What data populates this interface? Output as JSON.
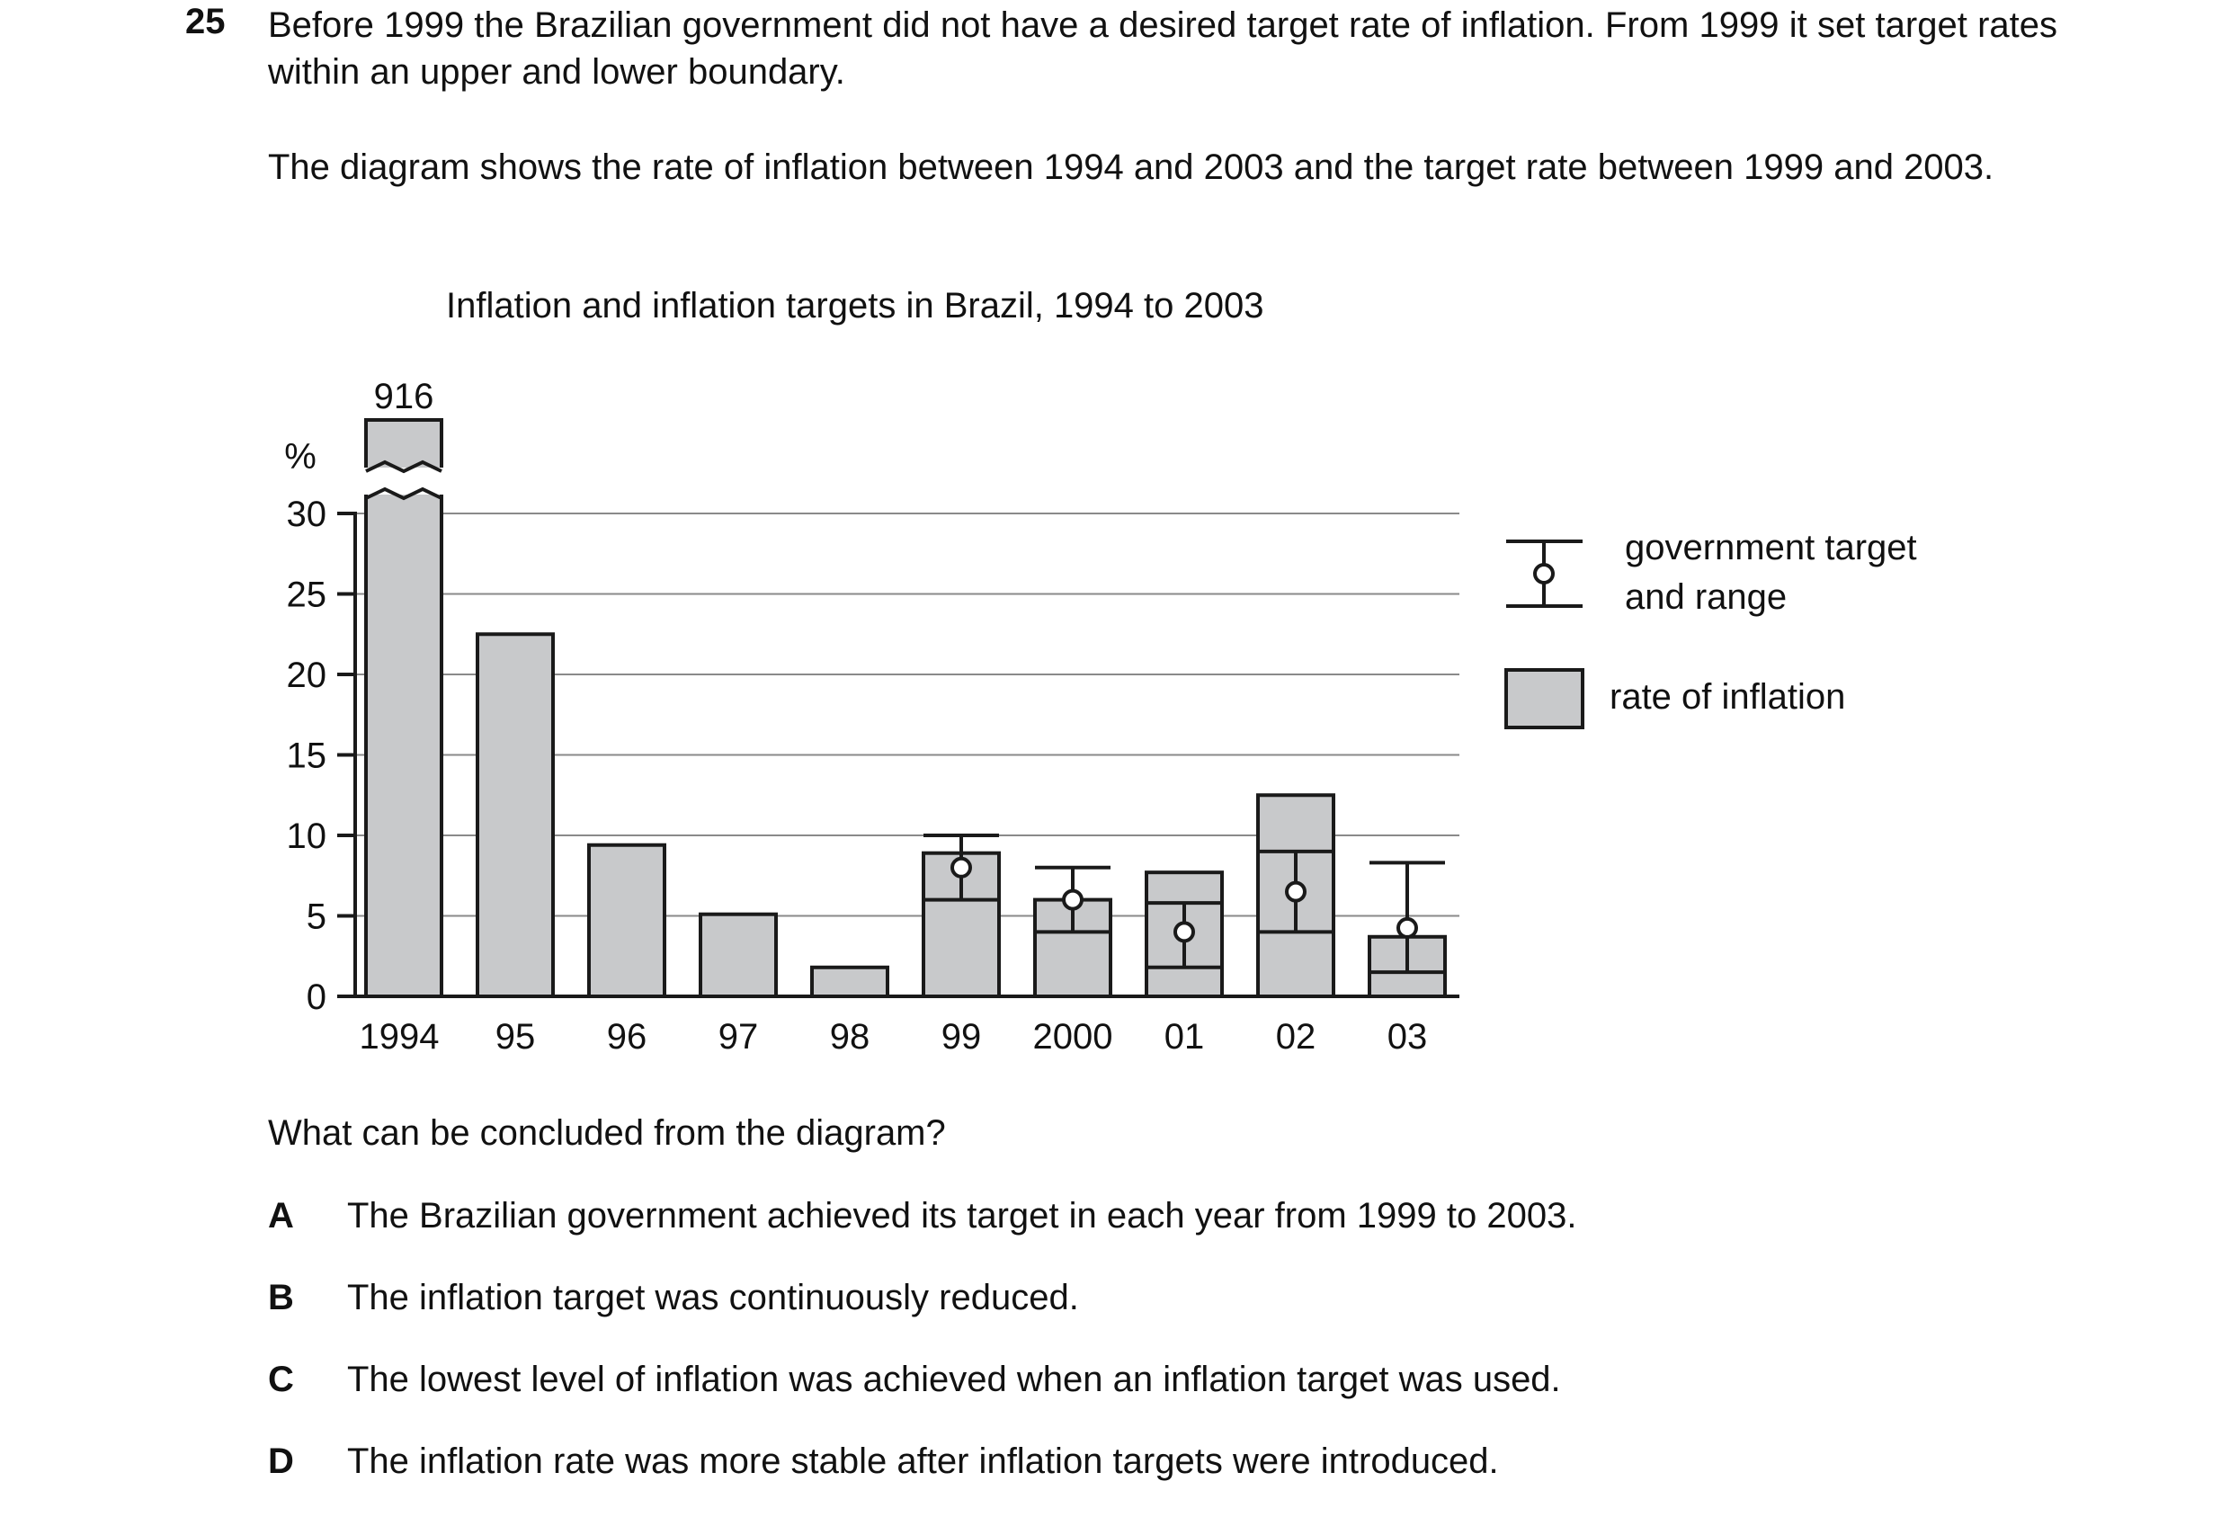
{
  "question_number": "25",
  "intro": [
    "Before 1999 the Brazilian government did not have a desired target rate of inflation. From 1999 it set target rates within an upper and lower boundary.",
    "The diagram shows the rate of inflation between 1994 and 2003 and the target rate between 1999 and 2003."
  ],
  "chart_data": {
    "type": "bar",
    "title": "Inflation and inflation targets in Brazil, 1994 to 2003",
    "ylabel": "%",
    "ylim": [
      0,
      30
    ],
    "yticks": [
      0,
      5,
      10,
      15,
      20,
      25,
      30
    ],
    "categories": [
      "1994",
      "95",
      "96",
      "97",
      "98",
      "99",
      "2000",
      "01",
      "02",
      "03"
    ],
    "axis_break": true,
    "grid": true,
    "series": [
      {
        "name": "rate of inflation",
        "values": [
          916,
          22.5,
          9.4,
          5.1,
          1.8,
          8.9,
          6.0,
          7.7,
          12.5,
          3.7
        ],
        "bar_labels": [
          "916",
          "",
          "",
          "",
          "",
          "",
          "",
          "",
          "",
          ""
        ]
      },
      {
        "name": "government target and range",
        "targets": [
          null,
          null,
          null,
          null,
          null,
          8.0,
          6.0,
          4.0,
          6.5,
          4.25
        ],
        "upper": [
          null,
          null,
          null,
          null,
          null,
          10.0,
          8.0,
          5.8,
          9.0,
          8.3
        ],
        "lower": [
          null,
          null,
          null,
          null,
          null,
          6.0,
          4.0,
          1.8,
          4.0,
          1.5
        ]
      }
    ],
    "legend": {
      "position": "right",
      "target_label_lines": [
        "government target",
        "and range"
      ],
      "inflation_label": "rate of inflation"
    }
  },
  "question": "What can be concluded from the diagram?",
  "options": [
    {
      "letter": "A",
      "text": "The Brazilian government achieved its target in each year from 1999 to 2003."
    },
    {
      "letter": "B",
      "text": "The inflation target was continuously reduced."
    },
    {
      "letter": "C",
      "text": "The lowest level of inflation was achieved when an inflation target was used."
    },
    {
      "letter": "D",
      "text": "The inflation rate was more stable after inflation targets were introduced."
    }
  ],
  "colors": {
    "bar_fill": "#c8c9cb",
    "stroke": "#1a1a1a",
    "grid": "#8a8a8a"
  }
}
